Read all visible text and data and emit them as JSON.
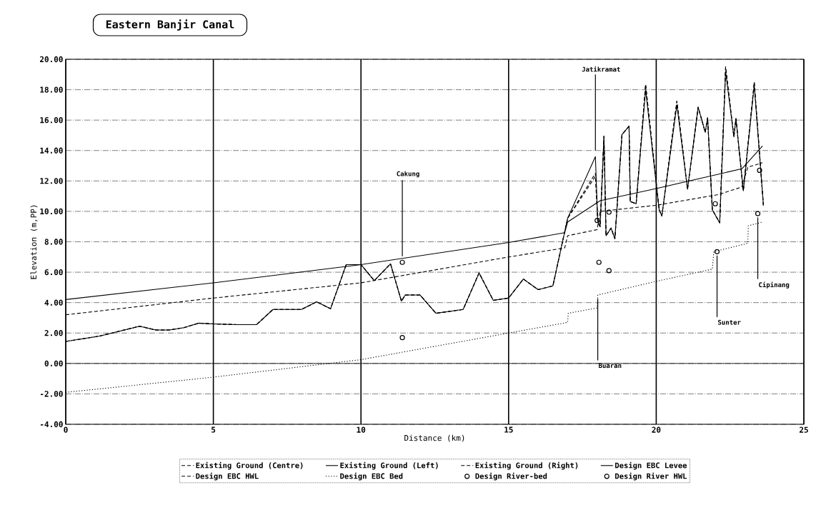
{
  "chart_data": {
    "type": "line",
    "title": "Eastern Banjir Canal",
    "xlabel": "Distance (km)",
    "ylabel": "Elevation (m,PP)",
    "xlim": [
      0,
      25
    ],
    "xticks": [
      0,
      5,
      10,
      15,
      20,
      25
    ],
    "ylim": [
      -4,
      20
    ],
    "yticks": [
      {
        "value": -4,
        "label": "-4.00"
      },
      {
        "value": -2,
        "label": "-2.00"
      },
      {
        "value": 0,
        "label": "0.00"
      },
      {
        "value": 2,
        "label": "2.00"
      },
      {
        "value": 4,
        "label": "4.00"
      },
      {
        "value": 6,
        "label": "6.00"
      },
      {
        "value": 8,
        "label": "8.00"
      },
      {
        "value": 10,
        "label": "10.00"
      },
      {
        "value": 12,
        "label": "12.00"
      },
      {
        "value": 14,
        "label": "14.00"
      },
      {
        "value": 16,
        "label": "16.00"
      },
      {
        "value": 18,
        "label": "18.00"
      },
      {
        "value": 20,
        "label": "20.00"
      }
    ],
    "grid": true,
    "legend": "bottom",
    "ref_lines": [
      {
        "axis": "y",
        "value": 0,
        "color": "#000000",
        "line_style": "solid"
      }
    ],
    "annotations": [
      {
        "text": "Cakung",
        "x": 11.4,
        "y": 6.65
      },
      {
        "text": "Jatikramat",
        "x": 17.94,
        "y": 13.6
      },
      {
        "text": "Buaran",
        "x": 18.02,
        "y": 4.5
      },
      {
        "text": "Sunter",
        "x": 22.06,
        "y": 7.35
      },
      {
        "text": "Cipinang",
        "x": 23.44,
        "y": 9.85
      }
    ],
    "series": [
      {
        "name": "Existing Ground (Centre)",
        "line_style": "dashed",
        "color": "#000000",
        "x": [
          0,
          1.15,
          2.5,
          3.05,
          3.5,
          4.0,
          4.5,
          5.0,
          5.8,
          6.46,
          7.02,
          7.98,
          8.5,
          8.97,
          9.5,
          10.0,
          10.45,
          11.0,
          11.37,
          11.5,
          12.0,
          12.54,
          13.46,
          14.0,
          14.48,
          15.0,
          15.5,
          16.0,
          16.5,
          17.0,
          17.94,
          18.02,
          18.1,
          18.23,
          18.3,
          18.47,
          18.6,
          18.84,
          19.08,
          19.12,
          19.32,
          19.64,
          20.1,
          20.19,
          20.7,
          21.06,
          21.42,
          21.66,
          21.74,
          21.9,
          22.15,
          22.35,
          22.63,
          22.7,
          22.95,
          23.32,
          23.63
        ],
        "values": [
          1.45,
          1.8,
          2.45,
          2.2,
          2.2,
          2.35,
          2.65,
          2.6,
          2.55,
          2.55,
          3.55,
          3.55,
          4.05,
          3.6,
          6.5,
          6.5,
          5.45,
          6.55,
          4.1,
          4.5,
          4.5,
          3.3,
          3.55,
          5.95,
          4.15,
          4.3,
          5.55,
          4.85,
          5.1,
          9.55,
          12.5,
          9.3,
          9.0,
          14.95,
          8.4,
          8.9,
          8.2,
          15.05,
          15.6,
          10.65,
          10.5,
          18.35,
          10.1,
          9.7,
          17.25,
          11.45,
          16.85,
          15.2,
          16.15,
          10.1,
          9.25,
          19.5,
          14.9,
          16.1,
          11.35,
          18.5,
          10.4
        ]
      },
      {
        "name": "Existing Ground (Left)",
        "line_style": "solid",
        "color": "#000000",
        "x": [
          0,
          1.15,
          2.5,
          3.05,
          3.5,
          4.0,
          4.5,
          5.0,
          5.8,
          6.46,
          7.02,
          7.98,
          8.5,
          8.97,
          9.5,
          10.0,
          10.45,
          11.0,
          11.37,
          11.5,
          12.0,
          12.54,
          13.46,
          14.0,
          14.48,
          15.0,
          15.5,
          16.0,
          16.5,
          17.0,
          17.94,
          18.02,
          18.1,
          18.23,
          18.3,
          18.47,
          18.6,
          18.84,
          19.08,
          19.12,
          19.32,
          19.64,
          20.1,
          20.19,
          20.7,
          21.06,
          21.42,
          21.66,
          21.74,
          21.9,
          22.15,
          22.35,
          22.63,
          22.7,
          22.95,
          23.32,
          23.63
        ],
        "values": [
          1.45,
          1.8,
          2.45,
          2.2,
          2.2,
          2.35,
          2.65,
          2.6,
          2.55,
          2.55,
          3.55,
          3.55,
          4.05,
          3.6,
          6.5,
          6.5,
          5.45,
          6.55,
          4.1,
          4.5,
          4.5,
          3.3,
          3.55,
          5.95,
          4.15,
          4.3,
          5.55,
          4.85,
          5.1,
          9.55,
          13.6,
          9.3,
          9.0,
          14.95,
          8.4,
          8.9,
          8.2,
          15.05,
          15.6,
          10.65,
          10.5,
          18.0,
          10.1,
          9.7,
          17.0,
          11.45,
          16.85,
          15.2,
          16.15,
          10.1,
          9.25,
          19.2,
          14.9,
          16.1,
          11.35,
          18.3,
          10.4
        ]
      },
      {
        "name": "Existing Ground (Right)",
        "line_style": "dashed",
        "color": "#000000",
        "x": [
          0,
          1.15,
          2.5,
          3.05,
          3.5,
          4.0,
          4.5,
          5.0,
          5.8,
          6.46,
          7.02,
          7.98,
          8.5,
          8.97,
          9.5,
          10.0,
          10.45,
          11.0,
          11.37,
          11.5,
          12.0,
          12.54,
          13.46,
          14.0,
          14.48,
          15.0,
          15.5,
          16.0,
          16.5,
          17.0,
          17.94,
          18.02,
          18.1,
          18.23,
          18.3,
          18.47,
          18.6,
          18.84,
          19.08,
          19.12,
          19.32,
          19.64,
          20.1,
          20.19,
          20.7,
          21.06,
          21.42,
          21.66,
          21.74,
          21.9,
          22.15,
          22.35,
          22.63,
          22.7,
          22.95,
          23.32,
          23.63
        ],
        "values": [
          1.45,
          1.8,
          2.45,
          2.2,
          2.2,
          2.35,
          2.65,
          2.6,
          2.55,
          2.55,
          3.55,
          3.55,
          4.05,
          3.6,
          6.5,
          6.5,
          5.45,
          6.55,
          4.1,
          4.5,
          4.5,
          3.3,
          3.55,
          5.95,
          4.15,
          4.3,
          5.55,
          4.85,
          5.1,
          9.55,
          12.3,
          9.3,
          9.0,
          14.95,
          8.4,
          8.9,
          8.2,
          15.05,
          15.6,
          10.65,
          10.5,
          18.35,
          10.1,
          9.7,
          17.25,
          11.45,
          16.85,
          15.2,
          16.15,
          10.1,
          9.25,
          19.5,
          14.9,
          16.1,
          11.35,
          18.5,
          10.4
        ]
      },
      {
        "name": "Design EBC Levee",
        "line_style": "solid",
        "color": "#000000",
        "x": [
          0,
          5,
          10,
          15,
          16.9,
          17.0,
          18.1,
          20,
          22.9,
          23.6
        ],
        "values": [
          4.2,
          5.3,
          6.5,
          7.95,
          8.6,
          9.3,
          10.7,
          11.5,
          12.8,
          14.3
        ]
      },
      {
        "name": "Design EBC HWL",
        "line_style": "dashed",
        "color": "#000000",
        "x": [
          0,
          5,
          10,
          15,
          16.9,
          17.0,
          18.0,
          18.1,
          20,
          22.1,
          22.9,
          23.1,
          23.6
        ],
        "values": [
          3.2,
          4.3,
          5.3,
          7.0,
          7.6,
          8.4,
          8.8,
          10.0,
          10.4,
          11.1,
          11.6,
          12.9,
          13.2
        ]
      },
      {
        "name": "Design EBC Bed",
        "line_style": "dotted",
        "color": "#000000",
        "x": [
          0,
          5,
          10,
          15,
          17.0,
          17.02,
          18.0,
          18.02,
          20,
          21.9,
          21.95,
          23.1,
          23.12,
          23.6
        ],
        "values": [
          -1.9,
          -0.9,
          0.25,
          2.0,
          2.7,
          3.3,
          3.65,
          4.5,
          5.4,
          6.2,
          7.35,
          7.9,
          9.05,
          9.3
        ]
      },
      {
        "name": "Design River-bed",
        "type": "scatter",
        "marker": "circle",
        "color": "#000000",
        "x": [
          11.4,
          18.06,
          18.4,
          22.06,
          23.44
        ],
        "values": [
          1.7,
          6.65,
          6.1,
          7.35,
          9.85
        ]
      },
      {
        "name": "Design River HWL",
        "type": "scatter",
        "marker": "circle",
        "color": "#000000",
        "x": [
          11.4,
          18.0,
          18.4,
          22.0,
          23.5
        ],
        "values": [
          6.65,
          9.4,
          9.95,
          10.5,
          12.7
        ]
      }
    ]
  }
}
